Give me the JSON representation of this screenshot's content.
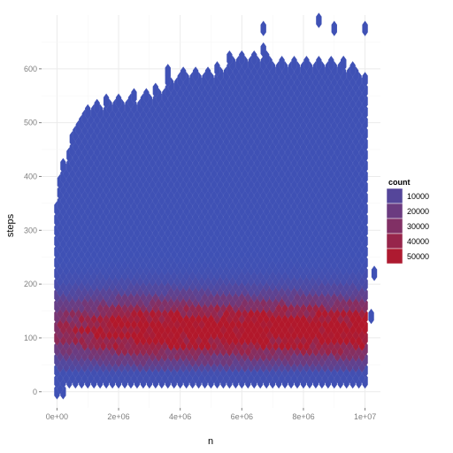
{
  "chart_data": {
    "type": "hexbin",
    "title": "",
    "xlabel": "n",
    "ylabel": "steps",
    "xlim": [
      -500000,
      10500000
    ],
    "ylim": [
      -30,
      700
    ],
    "x_ticks": [
      0,
      2000000,
      4000000,
      6000000,
      8000000,
      10000000
    ],
    "x_tick_labels": [
      "0e+00",
      "2e+06",
      "4e+06",
      "6e+06",
      "8e+06",
      "1e+07"
    ],
    "y_ticks": [
      0,
      100,
      200,
      300,
      400,
      500,
      600
    ],
    "y_tick_labels": [
      "0",
      "100",
      "200",
      "300",
      "400",
      "500",
      "600"
    ],
    "grid": true,
    "legend": {
      "title": "count",
      "placement": "right",
      "breaks": [
        10000,
        20000,
        30000,
        40000,
        50000
      ],
      "labels": [
        "10000",
        "20000",
        "30000",
        "40000",
        "50000"
      ]
    },
    "color_scale": {
      "low_count": 1,
      "high_count": 52000,
      "low_color": "#3f51b5",
      "high_color": "#b2182b"
    },
    "hexbin": {
      "x_step": 200000,
      "y_step": 20,
      "x_start": 0,
      "y_start": 0,
      "density_center_steps": 120,
      "density_spread_steps": 55,
      "max_count": 52000,
      "upper_envelope": [
        [
          0,
          360
        ],
        [
          200000,
          430
        ],
        [
          600000,
          500
        ],
        [
          1000000,
          540
        ],
        [
          2000000,
          550
        ],
        [
          3000000,
          560
        ],
        [
          4000000,
          600
        ],
        [
          5000000,
          600
        ],
        [
          6000000,
          640
        ],
        [
          7000000,
          620
        ],
        [
          8000000,
          620
        ],
        [
          9000000,
          620
        ],
        [
          10000000,
          600
        ]
      ],
      "outliers": [
        [
          6700000,
          675
        ],
        [
          6700000,
          635
        ],
        [
          8500000,
          690
        ],
        [
          9000000,
          675
        ],
        [
          10000000,
          675
        ],
        [
          9300000,
          610
        ],
        [
          3600000,
          595
        ],
        [
          10300000,
          220
        ],
        [
          10200000,
          140
        ]
      ]
    }
  }
}
